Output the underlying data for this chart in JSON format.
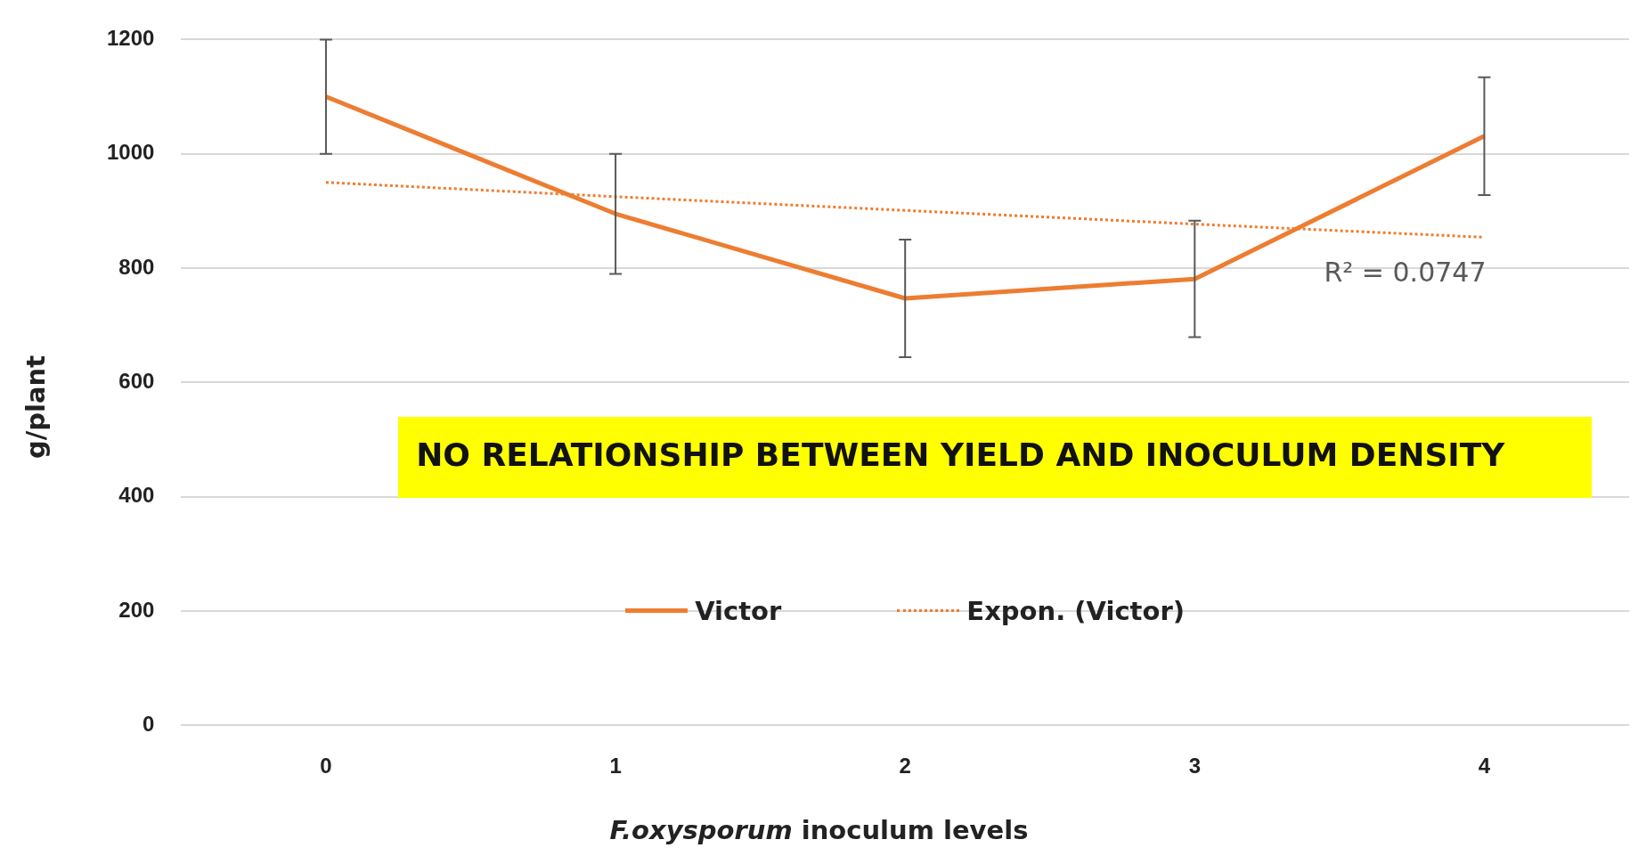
{
  "chart_data": {
    "type": "line",
    "xlabel": "F.oxysporum inoculum levels",
    "ylabel": "g/plant",
    "categories": [
      "0",
      "1",
      "2",
      "3",
      "4"
    ],
    "series": [
      {
        "name": "Victor",
        "color": "#ed7d31",
        "values": [
          1100,
          895,
          747,
          781,
          1031
        ],
        "errors": [
          100,
          105,
          103,
          102,
          103
        ],
        "line_style": "solid"
      },
      {
        "name": "Expon. (Victor)",
        "color": "#ed7d31",
        "values": [
          950,
          925,
          901,
          877,
          854
        ],
        "line_style": "dotted"
      }
    ],
    "ylim": [
      0,
      1200
    ],
    "yticks": [
      0,
      200,
      400,
      600,
      800,
      1000,
      1200
    ],
    "grid": "y",
    "legend": "bottom",
    "marker": "none",
    "annotations": [
      {
        "text": "R² = 0.0747",
        "x": "4",
        "y": 854
      },
      "NO RELATIONSHIP BETWEEN YIELD AND INOCULUM DENSITY"
    ]
  }
}
